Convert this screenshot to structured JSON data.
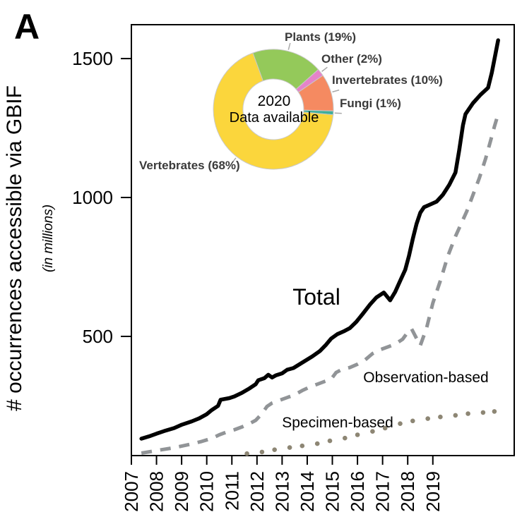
{
  "panel": {
    "label": "A"
  },
  "axes": {
    "y_title": "# occurrences accessible via GBIF",
    "y_subtitle": "(in millions)"
  },
  "series_labels": {
    "total": "Total",
    "observation": "Observation-based",
    "specimen": "Specimen-based"
  },
  "donut": {
    "center_line1": "2020",
    "center_line2": "Data available",
    "labels": {
      "plants": "Plants (19%)",
      "other": "Other (2%)",
      "invertebrates": "Invertebrates (10%)",
      "fungi": "Fungi (1%)",
      "vertebrates": "Vertebrates (68%)"
    }
  },
  "colors": {
    "total_line": "#000000",
    "observation_line": "#919497",
    "specimen_dots": "#8d8674",
    "plants": "#94c95a",
    "other": "#e583c9",
    "invertebrates": "#f58a61",
    "fungi": "#3fae9b",
    "vertebrates": "#fbd63c",
    "leader": "#a9a9a9"
  },
  "chart_data": [
    {
      "type": "line",
      "title": "",
      "xlabel": "",
      "ylabel": "# occurrences accessible via GBIF (in millions)",
      "xlim": [
        2007,
        2022.24
      ],
      "ylim": [
        71,
        1622
      ],
      "grid": false,
      "x_ticks": [
        2007,
        2008,
        2009,
        2010,
        2011,
        2012,
        2013,
        2014,
        2015,
        2016,
        2017,
        2018,
        2019
      ],
      "y_ticks": [
        500,
        1000,
        1500
      ],
      "series": [
        {
          "name": "Total",
          "style": "solid",
          "color": "#000000",
          "points": [
            [
              2007.4,
              132
            ],
            [
              2007.7,
              140
            ],
            [
              2008.0,
              150
            ],
            [
              2008.3,
              159
            ],
            [
              2008.7,
              170
            ],
            [
              2009.0,
              182
            ],
            [
              2009.4,
              194
            ],
            [
              2009.7,
              205
            ],
            [
              2010.0,
              220
            ],
            [
              2010.2,
              235
            ],
            [
              2010.45,
              250
            ],
            [
              2010.55,
              272
            ],
            [
              2010.9,
              278
            ],
            [
              2011.1,
              284
            ],
            [
              2011.4,
              297
            ],
            [
              2011.7,
              313
            ],
            [
              2011.95,
              328
            ],
            [
              2012.05,
              342
            ],
            [
              2012.3,
              350
            ],
            [
              2012.45,
              362
            ],
            [
              2012.6,
              352
            ],
            [
              2012.75,
              360
            ],
            [
              2013.0,
              367
            ],
            [
              2013.2,
              380
            ],
            [
              2013.45,
              386
            ],
            [
              2013.7,
              400
            ],
            [
              2013.95,
              414
            ],
            [
              2014.2,
              428
            ],
            [
              2014.5,
              447
            ],
            [
              2014.75,
              470
            ],
            [
              2014.95,
              492
            ],
            [
              2015.2,
              508
            ],
            [
              2015.45,
              518
            ],
            [
              2015.7,
              530
            ],
            [
              2015.95,
              552
            ],
            [
              2016.2,
              580
            ],
            [
              2016.5,
              615
            ],
            [
              2016.75,
              640
            ],
            [
              2017.05,
              658
            ],
            [
              2017.3,
              630
            ],
            [
              2017.5,
              660
            ],
            [
              2017.7,
              700
            ],
            [
              2017.9,
              740
            ],
            [
              2018.05,
              790
            ],
            [
              2018.2,
              850
            ],
            [
              2018.35,
              905
            ],
            [
              2018.5,
              945
            ],
            [
              2018.65,
              965
            ],
            [
              2018.9,
              975
            ],
            [
              2019.15,
              985
            ],
            [
              2019.4,
              1010
            ],
            [
              2019.65,
              1045
            ],
            [
              2019.9,
              1090
            ],
            [
              2020.05,
              1170
            ],
            [
              2020.2,
              1260
            ],
            [
              2020.3,
              1300
            ],
            [
              2020.6,
              1340
            ],
            [
              2020.9,
              1370
            ],
            [
              2021.2,
              1395
            ],
            [
              2021.35,
              1450
            ],
            [
              2021.5,
              1520
            ],
            [
              2021.6,
              1566
            ]
          ]
        },
        {
          "name": "Observation-based",
          "style": "dashed",
          "color": "#919497",
          "points": [
            [
              2007.4,
              80
            ],
            [
              2007.8,
              86
            ],
            [
              2008.2,
              92
            ],
            [
              2008.6,
              98
            ],
            [
              2009.0,
              105
            ],
            [
              2009.4,
              113
            ],
            [
              2009.8,
              122
            ],
            [
              2010.2,
              133
            ],
            [
              2010.5,
              146
            ],
            [
              2010.8,
              156
            ],
            [
              2011.1,
              164
            ],
            [
              2011.4,
              174
            ],
            [
              2011.7,
              186
            ],
            [
              2011.95,
              198
            ],
            [
              2012.2,
              222
            ],
            [
              2012.4,
              248
            ],
            [
              2012.6,
              260
            ],
            [
              2012.9,
              270
            ],
            [
              2013.2,
              280
            ],
            [
              2013.5,
              290
            ],
            [
              2013.8,
              305
            ],
            [
              2014.1,
              318
            ],
            [
              2014.4,
              328
            ],
            [
              2014.7,
              338
            ],
            [
              2014.95,
              346
            ],
            [
              2015.15,
              370
            ],
            [
              2015.4,
              382
            ],
            [
              2015.7,
              388
            ],
            [
              2016.0,
              400
            ],
            [
              2016.3,
              415
            ],
            [
              2016.6,
              438
            ],
            [
              2016.9,
              452
            ],
            [
              2017.2,
              462
            ],
            [
              2017.5,
              472
            ],
            [
              2017.8,
              490
            ],
            [
              2018.0,
              515
            ],
            [
              2018.15,
              528
            ],
            [
              2018.5,
              467
            ],
            [
              2018.75,
              530
            ],
            [
              2019.0,
              620
            ],
            [
              2019.3,
              700
            ],
            [
              2019.6,
              790
            ],
            [
              2019.9,
              860
            ],
            [
              2020.1,
              900
            ],
            [
              2020.35,
              950
            ],
            [
              2020.6,
              1010
            ],
            [
              2020.85,
              1070
            ],
            [
              2021.1,
              1140
            ],
            [
              2021.3,
              1205
            ],
            [
              2021.45,
              1255
            ],
            [
              2021.6,
              1300
            ]
          ]
        },
        {
          "name": "Specimen-based",
          "style": "dotted",
          "color": "#8d8674",
          "points": [
            [
              2011.6,
              78
            ],
            [
              2012.2,
              84
            ],
            [
              2012.7,
              92
            ],
            [
              2013.3,
              100
            ],
            [
              2013.8,
              106
            ],
            [
              2014.4,
              114
            ],
            [
              2014.9,
              124
            ],
            [
              2015.5,
              134
            ],
            [
              2016.0,
              146
            ],
            [
              2016.6,
              158
            ],
            [
              2017.1,
              170
            ],
            [
              2017.7,
              186
            ],
            [
              2018.2,
              196
            ],
            [
              2018.8,
              204
            ],
            [
              2019.3,
              210
            ],
            [
              2019.9,
              216
            ],
            [
              2020.4,
              222
            ],
            [
              2021.0,
              226
            ],
            [
              2021.45,
              230
            ]
          ]
        }
      ]
    },
    {
      "type": "pie",
      "title": "2020 Data available",
      "donut": true,
      "inner_radius_ratio": 0.5,
      "start_angle_deg": -20,
      "legend_position": "callout-labels",
      "segments": [
        {
          "label": "Plants",
          "pct": 19,
          "color": "#94c95a"
        },
        {
          "label": "Other",
          "pct": 2,
          "color": "#e583c9"
        },
        {
          "label": "Invertebrates",
          "pct": 10,
          "color": "#f58a61"
        },
        {
          "label": "Fungi",
          "pct": 1,
          "color": "#3fae9b"
        },
        {
          "label": "Vertebrates",
          "pct": 68,
          "color": "#fbd63c"
        }
      ]
    }
  ]
}
